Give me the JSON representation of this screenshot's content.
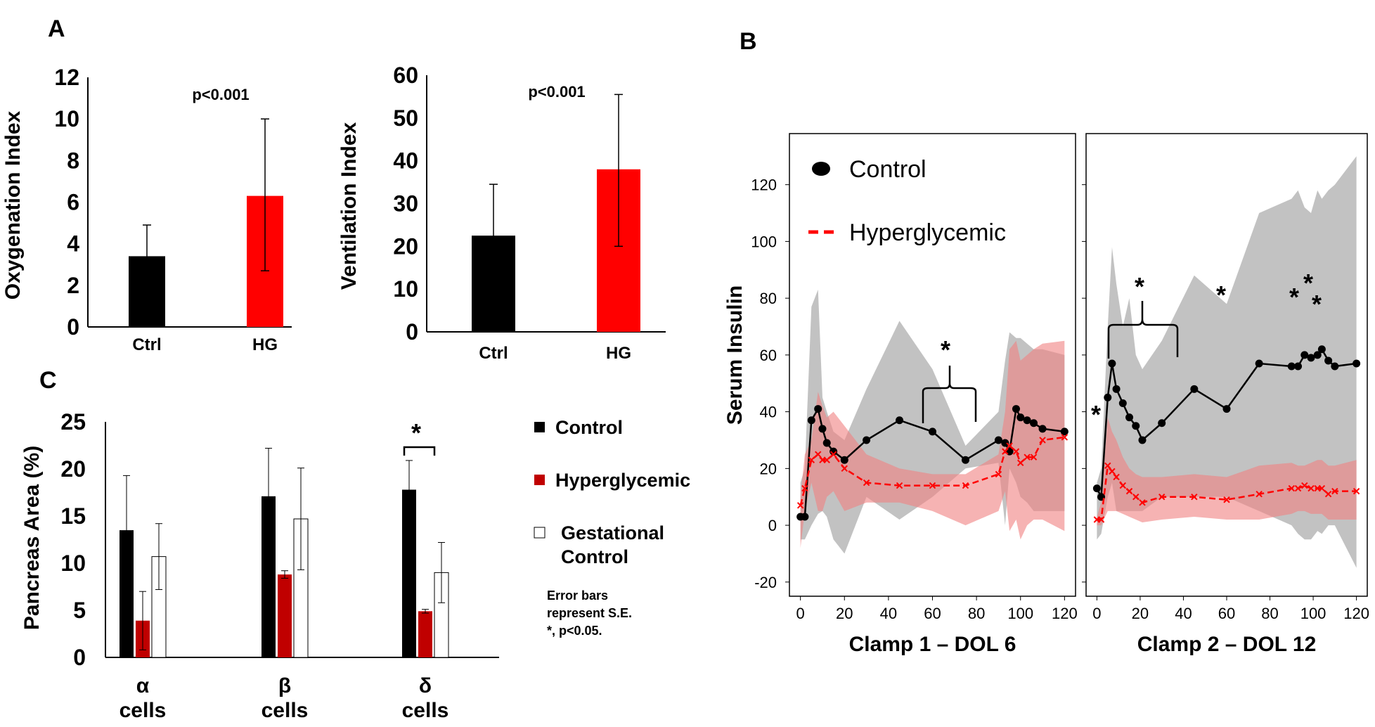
{
  "panel_labels": {
    "a": "A",
    "b": "B",
    "c": "C"
  },
  "colors": {
    "control": "#000000",
    "hyperglycemic": "#ff0000",
    "hyperglycemic_dark": "#c00000",
    "gestational": "#ffffff",
    "control_band": "#999999",
    "hyper_band": "#f08080"
  },
  "chart_data": [
    {
      "id": "oxygenation",
      "type": "bar",
      "ylabel": "Oxygenation Index",
      "ylim": [
        0,
        12
      ],
      "yticks": [
        "0",
        "2",
        "4",
        "6",
        "8",
        "10",
        "12"
      ],
      "categories": [
        "Ctrl",
        "HG"
      ],
      "values": [
        3.4,
        6.3
      ],
      "errors_upper": [
        4.9,
        10.0
      ],
      "errors_lower": [
        2.0,
        2.7
      ],
      "annotation": "p<0.001"
    },
    {
      "id": "ventilation",
      "type": "bar",
      "ylabel": "Ventilation Index",
      "ylim": [
        0,
        60
      ],
      "yticks": [
        "0",
        "10",
        "20",
        "30",
        "40",
        "50",
        "60"
      ],
      "categories": [
        "Ctrl",
        "HG"
      ],
      "values": [
        22.5,
        38.0
      ],
      "errors_upper": [
        34.5,
        55.5
      ],
      "errors_lower": [
        10.5,
        20.0
      ],
      "annotation": "p<0.001"
    },
    {
      "id": "insulin_clamp1",
      "type": "line",
      "xlabel": "Clamp 1 – DOL 6",
      "ylabel": "Serum Insulin",
      "xlim": [
        -5,
        125
      ],
      "ylim": [
        -25,
        138
      ],
      "xticks": [
        "0",
        "20",
        "40",
        "60",
        "80",
        "100",
        "120"
      ],
      "yticks": [
        "-20",
        "0",
        "20",
        "40",
        "60",
        "80",
        "100",
        "120"
      ],
      "series": [
        {
          "name": "Control",
          "x": [
            0,
            2,
            5,
            8,
            10,
            12,
            15,
            20,
            30,
            45,
            60,
            75,
            90,
            93,
            95,
            98,
            100,
            103,
            106,
            110,
            120
          ],
          "y": [
            3,
            3,
            37,
            41,
            34,
            29,
            26,
            23,
            30,
            37,
            33,
            23,
            30,
            29,
            26,
            41,
            38,
            37,
            36,
            34,
            33
          ],
          "band_upper": [
            15,
            20,
            77,
            83,
            45,
            40,
            33,
            30,
            48,
            72,
            55,
            28,
            40,
            58,
            68,
            66,
            66,
            64,
            62,
            62,
            60
          ],
          "band_lower": [
            -5,
            -5,
            0,
            4,
            5,
            3,
            -5,
            -10,
            10,
            2,
            10,
            20,
            22,
            0,
            20,
            15,
            10,
            8,
            5,
            5,
            5
          ]
        },
        {
          "name": "Hyperglycemic",
          "x": [
            0,
            2,
            5,
            8,
            10,
            12,
            15,
            20,
            30,
            45,
            60,
            75,
            90,
            93,
            95,
            98,
            100,
            103,
            106,
            110,
            120
          ],
          "y": [
            7,
            13,
            23,
            25,
            23,
            23,
            25,
            20,
            15,
            14,
            14,
            14,
            18,
            26,
            28,
            26,
            22,
            24,
            24,
            30,
            31
          ],
          "band_upper": [
            10,
            25,
            30,
            47,
            42,
            38,
            40,
            35,
            25,
            20,
            18,
            18,
            25,
            40,
            62,
            65,
            58,
            60,
            62,
            64,
            65
          ],
          "band_lower": [
            -8,
            5,
            15,
            5,
            5,
            10,
            12,
            5,
            8,
            8,
            5,
            0,
            5,
            12,
            -2,
            2,
            -5,
            0,
            2,
            2,
            -2
          ]
        }
      ]
    },
    {
      "id": "insulin_clamp2",
      "type": "line",
      "xlabel": "Clamp 2 – DOL 12",
      "xlim": [
        -5,
        125
      ],
      "ylim": [
        -25,
        138
      ],
      "xticks": [
        "0",
        "20",
        "40",
        "60",
        "80",
        "100",
        "120"
      ],
      "series": [
        {
          "name": "Control",
          "x": [
            0,
            2,
            5,
            7,
            9,
            12,
            15,
            18,
            21,
            30,
            45,
            60,
            75,
            90,
            93,
            96,
            99,
            102,
            104,
            107,
            110,
            120
          ],
          "y": [
            13,
            10,
            45,
            57,
            48,
            43,
            38,
            35,
            30,
            36,
            48,
            41,
            57,
            56,
            56,
            60,
            59,
            60,
            62,
            58,
            56,
            57
          ],
          "band_upper": [
            15,
            20,
            70,
            98,
            85,
            70,
            80,
            60,
            55,
            65,
            88,
            78,
            110,
            115,
            118,
            112,
            110,
            118,
            115,
            118,
            120,
            130
          ],
          "band_lower": [
            -5,
            -3,
            10,
            15,
            5,
            5,
            5,
            5,
            5,
            10,
            10,
            10,
            5,
            0,
            -3,
            -5,
            -5,
            -2,
            -3,
            0,
            0,
            -15
          ]
        },
        {
          "name": "Hyperglycemic",
          "x": [
            0,
            2,
            5,
            7,
            9,
            12,
            15,
            18,
            21,
            30,
            45,
            60,
            75,
            90,
            93,
            96,
            99,
            102,
            104,
            107,
            110,
            120
          ],
          "y": [
            2,
            2,
            21,
            19,
            17,
            14,
            12,
            10,
            8,
            10,
            10,
            9,
            11,
            13,
            13,
            14,
            13,
            13,
            13,
            11,
            12,
            12
          ],
          "band_upper": [
            3,
            8,
            38,
            33,
            30,
            24,
            20,
            18,
            17,
            17,
            18,
            17,
            21,
            22,
            21,
            21,
            22,
            23,
            23,
            21,
            21,
            23
          ],
          "band_lower": [
            0,
            0,
            5,
            5,
            5,
            4,
            3,
            2,
            1,
            2,
            3,
            2,
            2,
            4,
            5,
            5,
            4,
            4,
            4,
            2,
            2,
            2
          ]
        }
      ]
    },
    {
      "id": "pancreas_area",
      "type": "bar",
      "ylabel": "Pancreas Area (%)",
      "ylim": [
        0,
        25
      ],
      "yticks": [
        "0",
        "5",
        "10",
        "15",
        "20",
        "25"
      ],
      "categories": [
        [
          "α",
          "cells"
        ],
        [
          "β",
          "cells"
        ],
        [
          "δ",
          "cells"
        ]
      ],
      "series": [
        {
          "name": "Control",
          "values": [
            13.5,
            17.1,
            17.8
          ],
          "errors": [
            5.8,
            5.1,
            3.1
          ]
        },
        {
          "name": "Hyperglycemic",
          "values": [
            3.9,
            8.8,
            4.9
          ],
          "errors": [
            3.1,
            0.4,
            0.2
          ]
        },
        {
          "name": "Gestational Control",
          "values": [
            10.7,
            14.7,
            9.0
          ],
          "errors": [
            3.5,
            5.4,
            3.2
          ]
        }
      ]
    }
  ],
  "legend_b": {
    "control": "Control",
    "hyperglycemic": "Hyperglycemic"
  },
  "legend_c": {
    "control": "Control",
    "hyperglycemic": "Hyperglycemic",
    "gestational_line1": "Gestational",
    "gestational_line2": "Control"
  },
  "note_c": [
    "Error bars",
    "represent S.E.",
    "*, p<0.05."
  ],
  "star": "*"
}
